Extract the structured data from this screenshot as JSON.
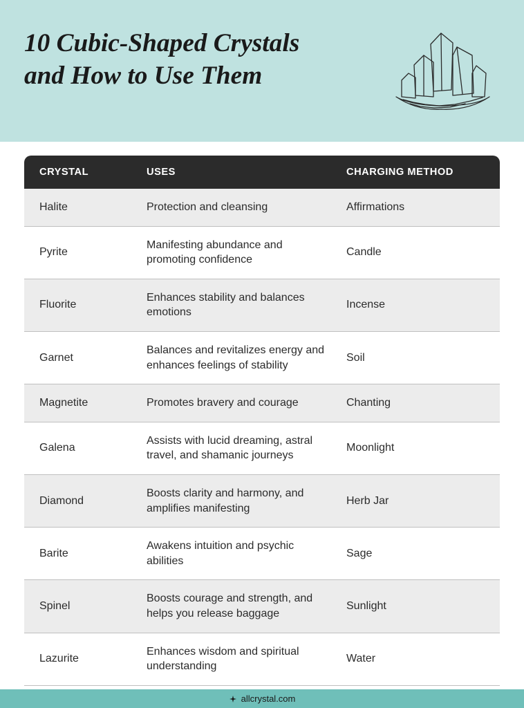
{
  "colors": {
    "header_bg": "#bfe2e0",
    "title_color": "#1a1a1a",
    "illus_color": "#2b2b2b",
    "thead_bg": "#2b2b2b",
    "thead_color": "#ffffff",
    "row_alt_bg": "#ececec",
    "row_border": "#bfbfbf",
    "row_text": "#2b2b2b",
    "footer_bg": "#6fbfb9",
    "footer_text": "#1a1a1a"
  },
  "typography": {
    "title_fontsize_pt": 28,
    "header_fontsize_pt": 11,
    "body_fontsize_pt": 12
  },
  "header": {
    "title": "10 Cubic-Shaped Crystals and How to Use Them"
  },
  "table": {
    "columns": [
      "CRYSTAL",
      "USES",
      "CHARGING METHOD"
    ],
    "rows": [
      {
        "crystal": "Halite",
        "uses": "Protection and cleansing",
        "method": "Affirmations"
      },
      {
        "crystal": "Pyrite",
        "uses": "Manifesting abundance and promoting confidence",
        "method": "Candle"
      },
      {
        "crystal": "Fluorite",
        "uses": "Enhances stability and balances emotions",
        "method": "Incense"
      },
      {
        "crystal": "Garnet",
        "uses": "Balances and revitalizes energy and enhances feelings of stability",
        "method": "Soil"
      },
      {
        "crystal": "Magnetite",
        "uses": "Promotes bravery and courage",
        "method": "Chanting"
      },
      {
        "crystal": "Galena",
        "uses": "Assists with lucid dreaming, astral travel, and shamanic journeys",
        "method": "Moonlight"
      },
      {
        "crystal": "Diamond",
        "uses": "Boosts clarity and harmony, and amplifies manifesting",
        "method": "Herb Jar"
      },
      {
        "crystal": "Barite",
        "uses": "Awakens intuition and psychic abilities",
        "method": "Sage"
      },
      {
        "crystal": "Spinel",
        "uses": "Boosts courage and strength, and helps you release baggage",
        "method": "Sunlight"
      },
      {
        "crystal": "Lazurite",
        "uses": "Enhances wisdom and spiritual understanding",
        "method": "Water"
      }
    ]
  },
  "footer": {
    "site": "allcrystal.com"
  }
}
